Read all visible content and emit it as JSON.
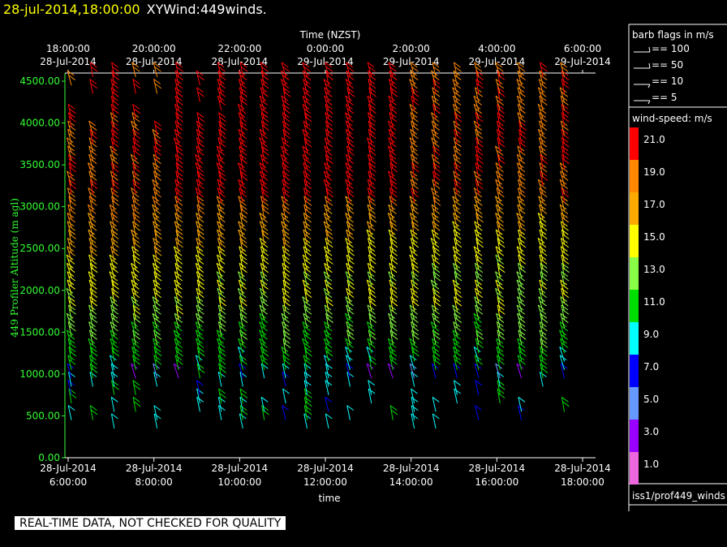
{
  "header": {
    "date_time": "28-jul-2014,18:00:00",
    "title": "XYWind:449winds."
  },
  "notice": "REAL-TIME DATA, NOT CHECKED FOR QUALITY",
  "legend": {
    "barb_title": "barb flags in m/s",
    "barb_items": [
      "== 100",
      "== 50",
      "== 10",
      "== 5"
    ],
    "speed_title": "wind-speed: m/s",
    "scale": [
      {
        "label": "21.0",
        "color": "#ff0000"
      },
      {
        "label": "19.0",
        "color": "#ff8800"
      },
      {
        "label": "17.0",
        "color": "#ffaa00"
      },
      {
        "label": "15.0",
        "color": "#ffff00"
      },
      {
        "label": "13.0",
        "color": "#88ff44"
      },
      {
        "label": "11.0",
        "color": "#00dd00"
      },
      {
        "label": "9.0",
        "color": "#00ffff"
      },
      {
        "label": "7.0",
        "color": "#0000ff"
      },
      {
        "label": "5.0",
        "color": "#6699ff"
      },
      {
        "label": "3.0",
        "color": "#9900ff"
      },
      {
        "label": "1.0",
        "color": "#ee66dd"
      }
    ],
    "source": "iss1/prof449_winds"
  },
  "chart_data": {
    "type": "wind-barb time-height",
    "top_axis_title": "Time (NZST)",
    "top_ticks": [
      {
        "time": "18:00:00",
        "date": "28-Jul-2014"
      },
      {
        "time": "20:00:00",
        "date": "28-Jul-2014"
      },
      {
        "time": "22:00:00",
        "date": "28-Jul-2014"
      },
      {
        "time": "0:00:00",
        "date": "29-Jul-2014"
      },
      {
        "time": "2:00:00",
        "date": "29-Jul-2014"
      },
      {
        "time": "4:00:00",
        "date": "29-Jul-2014"
      },
      {
        "time": "6:00:00",
        "date": "29-Jul-2014"
      }
    ],
    "bottom_ticks": [
      {
        "date": "28-Jul-2014",
        "time": "6:00:00"
      },
      {
        "date": "28-Jul-2014",
        "time": "8:00:00"
      },
      {
        "date": "28-Jul-2014",
        "time": "10:00:00"
      },
      {
        "date": "28-Jul-2014",
        "time": "12:00:00"
      },
      {
        "date": "28-Jul-2014",
        "time": "14:00:00"
      },
      {
        "date": "28-Jul-2014",
        "time": "16:00:00"
      },
      {
        "date": "28-Jul-2014",
        "time": "18:00:00"
      }
    ],
    "xlabel": "time",
    "ylabel": "449 Profiler Altitude (m agl)",
    "y_ticks": [
      "4500.00",
      "4000.00",
      "3500.00",
      "3000.00",
      "2500.00",
      "2000.00",
      "1500.00",
      "1000.00",
      "500.00",
      "0.00"
    ],
    "ylim": [
      0,
      4600
    ],
    "xlim_hours_utc": [
      6,
      18
    ],
    "profile_start_hour": 6.0,
    "profile_interval_hours": 0.5,
    "profile_count": 24,
    "gate_heights_start_m": 350,
    "gate_spacing_m": 100,
    "gate_heights_end_m": 4550
  }
}
